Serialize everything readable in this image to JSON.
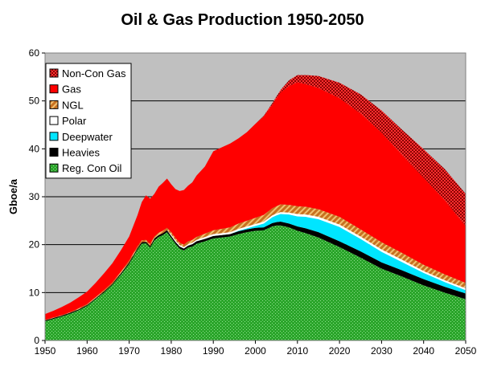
{
  "chart_data": {
    "type": "area",
    "stacked": true,
    "title": "Oil & Gas Production 1950-2050",
    "xlabel": "",
    "ylabel": "Gboe/a",
    "xlim": [
      1950,
      2050
    ],
    "ylim": [
      0,
      60
    ],
    "x_ticks": [
      1950,
      1960,
      1970,
      1980,
      1990,
      2000,
      2010,
      2020,
      2030,
      2040,
      2050
    ],
    "y_ticks": [
      0,
      10,
      20,
      30,
      40,
      50,
      60
    ],
    "grid": "horizontal",
    "legend_position": "top-left",
    "plot_background": "#c0c0c0",
    "x": [
      1950,
      1952,
      1954,
      1956,
      1958,
      1960,
      1962,
      1964,
      1966,
      1968,
      1970,
      1972,
      1973,
      1974,
      1975,
      1976,
      1977,
      1978,
      1979,
      1980,
      1981,
      1982,
      1983,
      1984,
      1985,
      1986,
      1988,
      1990,
      1992,
      1994,
      1996,
      1998,
      2000,
      2002,
      2004,
      2005,
      2006,
      2008,
      2010,
      2012,
      2015,
      2020,
      2025,
      2030,
      2035,
      2040,
      2045,
      2050
    ],
    "series": [
      {
        "name": "Reg. Con Oil",
        "color": "#2aa52a",
        "pattern": "dots",
        "values": [
          4,
          4.5,
          5,
          5.6,
          6.3,
          7.2,
          8.6,
          10,
          11.6,
          13.7,
          16,
          19,
          20.2,
          20.3,
          19.4,
          20.9,
          21.6,
          22,
          22.6,
          21.4,
          20.2,
          19.2,
          18.8,
          19.4,
          19.6,
          20.2,
          20.7,
          21.3,
          21.5,
          21.7,
          22.2,
          22.6,
          22.9,
          23,
          23.8,
          24,
          24,
          23.6,
          22.9,
          22.4,
          21.5,
          19.5,
          17.3,
          15,
          13.3,
          11.5,
          10,
          8.6
        ]
      },
      {
        "name": "Heavies",
        "color": "#000000",
        "values": [
          0.2,
          0.2,
          0.2,
          0.2,
          0.2,
          0.2,
          0.2,
          0.2,
          0.2,
          0.3,
          0.3,
          0.3,
          0.3,
          0.3,
          0.3,
          0.4,
          0.4,
          0.4,
          0.4,
          0.4,
          0.4,
          0.4,
          0.4,
          0.4,
          0.5,
          0.5,
          0.5,
          0.5,
          0.5,
          0.5,
          0.6,
          0.6,
          0.6,
          0.6,
          0.7,
          0.7,
          0.8,
          0.8,
          0.9,
          1,
          1.1,
          1.2,
          1.3,
          1.3,
          1.3,
          1.3,
          1.2,
          1.2
        ]
      },
      {
        "name": "Deepwater",
        "color": "#00e5ff",
        "values": [
          0,
          0,
          0,
          0,
          0,
          0,
          0,
          0,
          0,
          0,
          0,
          0,
          0,
          0,
          0,
          0,
          0,
          0,
          0,
          0,
          0,
          0,
          0,
          0,
          0,
          0,
          0,
          0,
          0,
          0,
          0.1,
          0.2,
          0.4,
          0.8,
          1.2,
          1.4,
          1.6,
          1.9,
          2.1,
          2.4,
          2.7,
          3,
          2.6,
          2.2,
          1.7,
          1.3,
          1,
          0.7
        ]
      },
      {
        "name": "Polar",
        "color": "#ffffff",
        "values": [
          0,
          0,
          0,
          0,
          0,
          0,
          0,
          0,
          0,
          0,
          0,
          0,
          0,
          0,
          0,
          0,
          0,
          0,
          0,
          0.3,
          0.3,
          0.3,
          0.3,
          0.3,
          0.3,
          0.3,
          0.4,
          0.4,
          0.4,
          0.4,
          0.4,
          0.4,
          0.4,
          0.4,
          0.4,
          0.4,
          0.4,
          0.4,
          0.5,
          0.5,
          0.5,
          0.5,
          0.5,
          0.5,
          0.5,
          0.4,
          0.4,
          0.4
        ]
      },
      {
        "name": "NGL",
        "color": "#c87020",
        "pattern": "diagonal",
        "values": [
          0.1,
          0.1,
          0.1,
          0.1,
          0.2,
          0.2,
          0.2,
          0.3,
          0.3,
          0.3,
          0.4,
          0.4,
          0.4,
          0.4,
          0.4,
          0.4,
          0.5,
          0.5,
          0.5,
          0.5,
          0.5,
          0.5,
          0.5,
          0.6,
          0.6,
          0.6,
          0.7,
          0.8,
          0.9,
          1,
          1.1,
          1.2,
          1.3,
          1.4,
          1.5,
          1.5,
          1.6,
          1.6,
          1.6,
          1.6,
          1.6,
          1.6,
          1.5,
          1.5,
          1.4,
          1.3,
          1.2,
          1.1
        ]
      },
      {
        "name": "Gas",
        "color": "#ff0000",
        "values": [
          1.2,
          1.4,
          1.7,
          2,
          2.3,
          2.6,
          3,
          3.5,
          4,
          4.5,
          5,
          6.5,
          8,
          9.3,
          9.5,
          8.9,
          9.6,
          10,
          10.3,
          10,
          10.2,
          10.8,
          11.4,
          11.6,
          12,
          12.8,
          14,
          16.5,
          17,
          17.5,
          17.8,
          18.5,
          19.6,
          20.6,
          21.6,
          22.5,
          23.4,
          24.8,
          25.9,
          25.6,
          25.3,
          24.8,
          24.2,
          22.9,
          20.4,
          18.2,
          15.5,
          11.9
        ]
      },
      {
        "name": "Non-Con Gas",
        "color": "#8b0000",
        "pattern": "checker",
        "values": [
          0,
          0,
          0,
          0,
          0,
          0,
          0,
          0,
          0,
          0,
          0,
          0,
          0,
          0,
          0,
          0,
          0,
          0,
          0,
          0,
          0,
          0,
          0,
          0,
          0,
          0,
          0,
          0,
          0,
          0,
          0,
          0,
          0,
          0.1,
          0.3,
          0.4,
          0.5,
          1.2,
          1.5,
          1.9,
          2.5,
          3.2,
          4,
          4.6,
          5.3,
          5.9,
          6.5,
          6.7
        ]
      }
    ],
    "legend_order": [
      "Non-Con Gas",
      "Gas",
      "NGL",
      "Polar",
      "Deepwater",
      "Heavies",
      "Reg. Con Oil"
    ]
  }
}
